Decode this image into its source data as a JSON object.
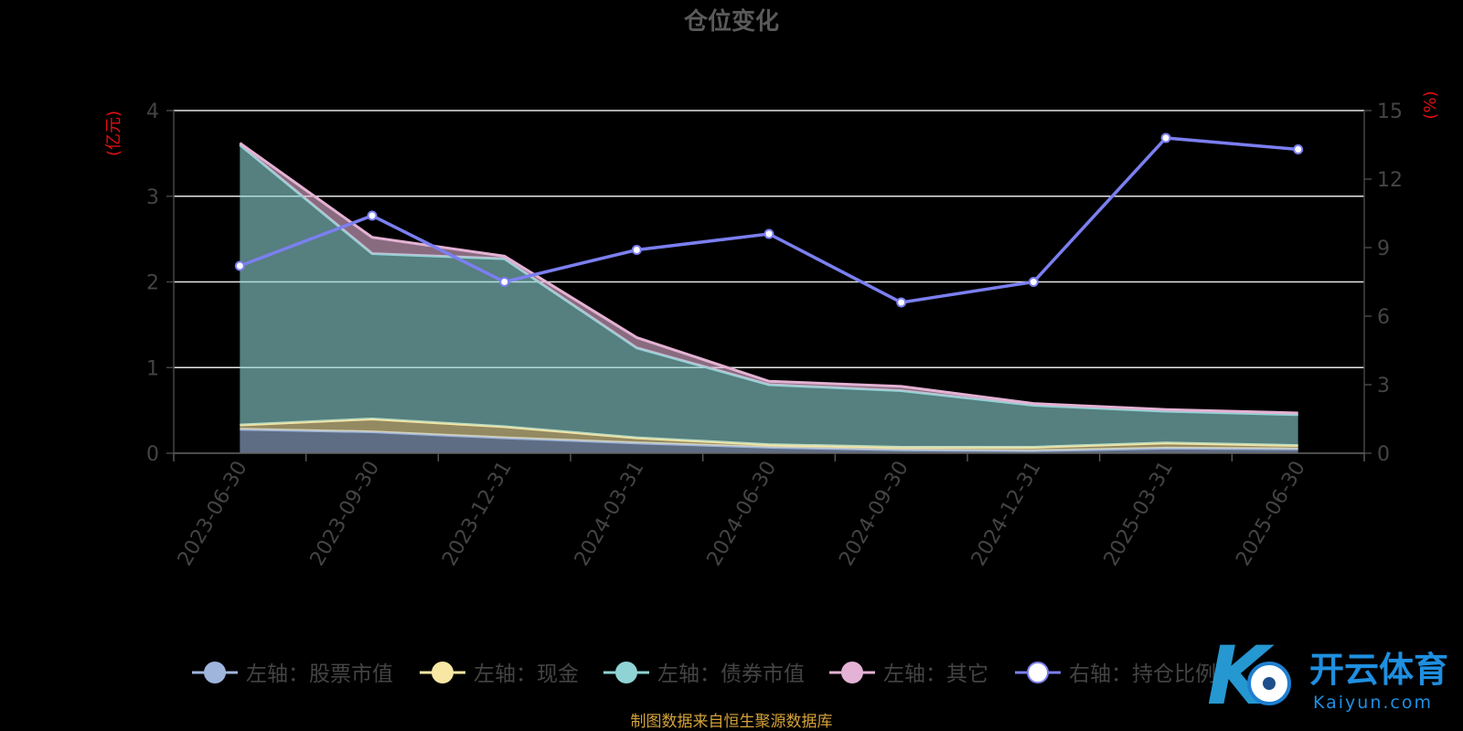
{
  "chart_data": {
    "type": "area",
    "title": "仓位变化",
    "ylabel_left": "(亿元)",
    "ylabel_right": "(%)",
    "categories": [
      "2023-06-30",
      "2023-09-30",
      "2023-12-31",
      "2024-03-31",
      "2024-06-30",
      "2024-09-30",
      "2024-12-31",
      "2025-03-31",
      "2025-06-30"
    ],
    "ylim_left": [
      0,
      4
    ],
    "yticks_left": [
      "0",
      "1",
      "2",
      "3",
      "4"
    ],
    "ylim_right": [
      0,
      15
    ],
    "yticks_right": [
      "0",
      "3",
      "6",
      "9",
      "12",
      "15"
    ],
    "grid": true,
    "legend_position": "bottom",
    "stacked_series": [
      {
        "name": "左轴：股票市值",
        "axis": "left",
        "color": "#9fb5dc",
        "values": [
          0.28,
          0.25,
          0.18,
          0.12,
          0.07,
          0.04,
          0.03,
          0.06,
          0.05
        ]
      },
      {
        "name": "左轴：现金",
        "axis": "left",
        "color": "#f7e6a4",
        "values": [
          0.05,
          0.15,
          0.13,
          0.06,
          0.03,
          0.03,
          0.04,
          0.06,
          0.04
        ]
      },
      {
        "name": "左轴：债券市值",
        "axis": "left",
        "color": "#8fd3d4",
        "values": [
          3.27,
          1.93,
          1.96,
          1.05,
          0.7,
          0.66,
          0.49,
          0.37,
          0.36
        ]
      },
      {
        "name": "左轴：其它",
        "axis": "left",
        "color": "#e4b2d4",
        "values": [
          0.02,
          0.19,
          0.03,
          0.12,
          0.04,
          0.05,
          0.02,
          0.02,
          0.02
        ]
      }
    ],
    "line_series": [
      {
        "name": "右轴：持仓比例",
        "axis": "right",
        "color": "#7b7ff0",
        "values": [
          8.2,
          10.4,
          7.5,
          8.9,
          9.6,
          6.6,
          7.5,
          13.8,
          13.3
        ]
      }
    ]
  },
  "source_note": "制图数据来自恒生聚源数据库",
  "watermark": {
    "brand": "开云体育",
    "url": "Kaiyun.com"
  }
}
